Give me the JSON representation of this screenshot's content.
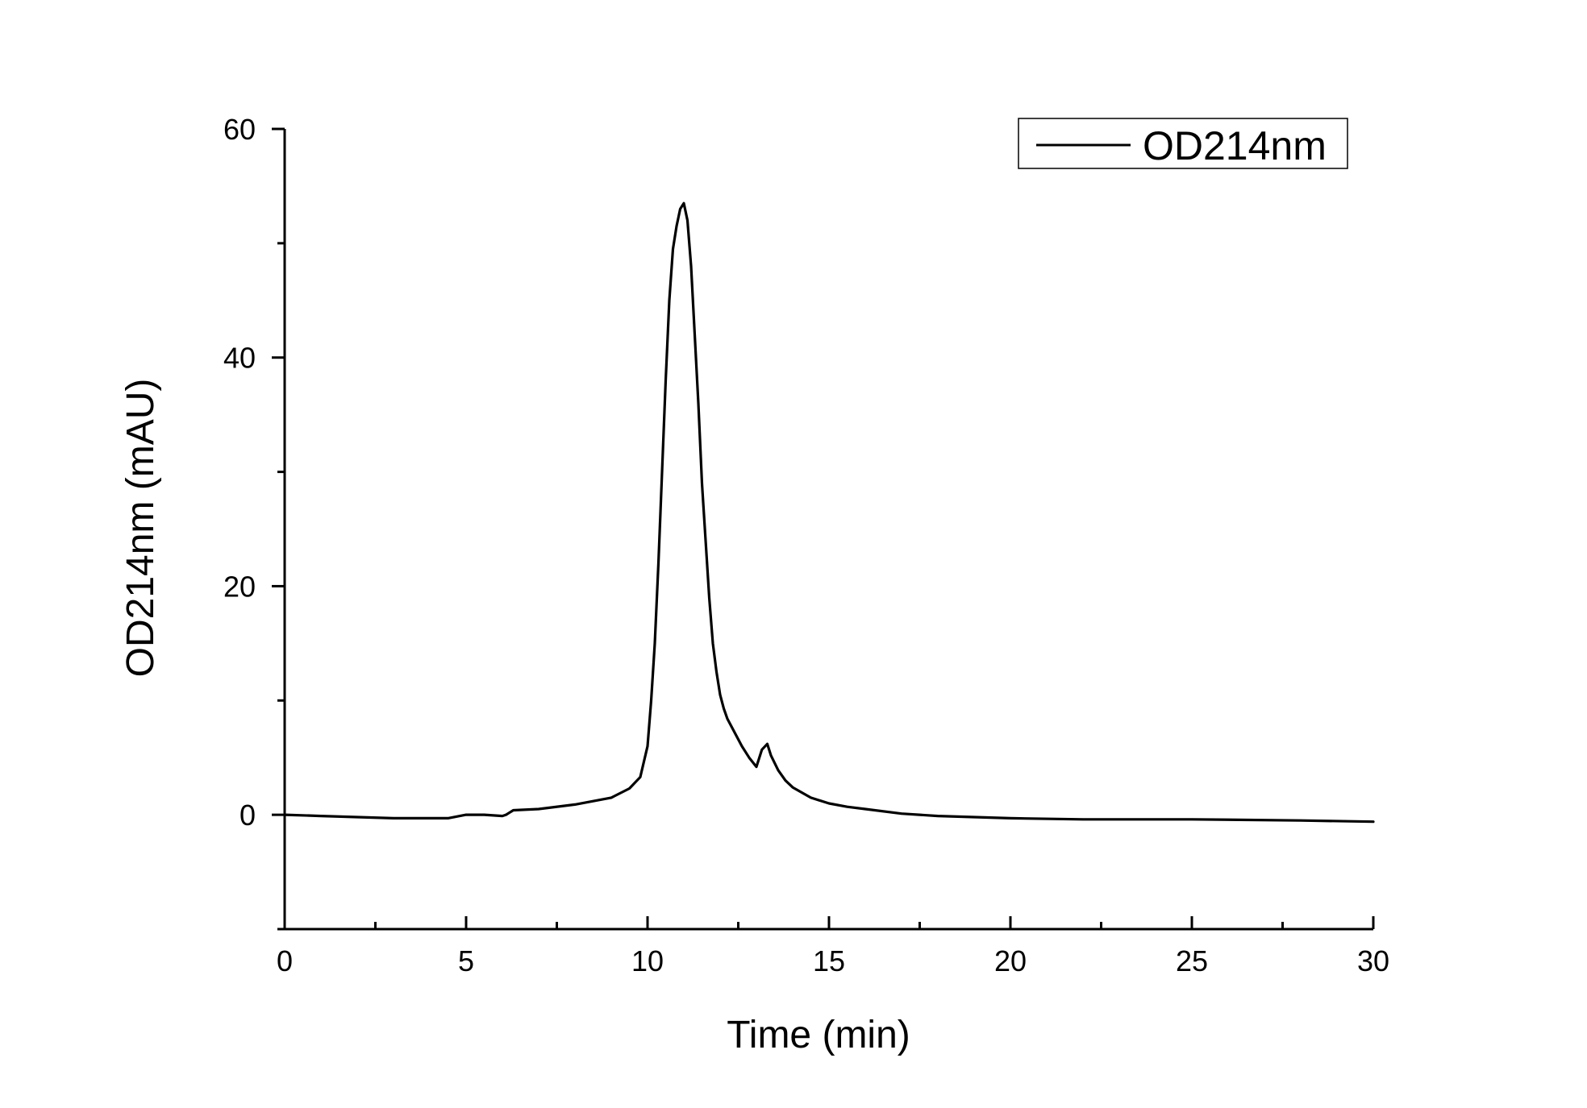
{
  "chart_data": {
    "type": "line",
    "title": "",
    "xlabel": "Time (min)",
    "ylabel": "OD214nm (mAU)",
    "xlim": [
      0,
      30
    ],
    "ylim": [
      -10,
      60
    ],
    "x_ticks": [
      0,
      5,
      10,
      15,
      20,
      25,
      30
    ],
    "x_tick_labels": [
      "0",
      "5",
      "10",
      "15",
      "20",
      "25",
      "30"
    ],
    "y_ticks": [
      0,
      20,
      40,
      60
    ],
    "y_tick_labels": [
      "0",
      "20",
      "40",
      "60"
    ],
    "x_minor_step": 2.5,
    "y_minor_step": 10,
    "grid": false,
    "legend": {
      "position": "top-right",
      "entries": [
        "OD214nm"
      ]
    },
    "line_color": "#000000",
    "series": [
      {
        "name": "OD214nm",
        "x": [
          0,
          1,
          2,
          3,
          4,
          4.5,
          5,
          5.5,
          6,
          6.1,
          6.2,
          6.3,
          7,
          8,
          9,
          9.5,
          9.8,
          10.0,
          10.1,
          10.2,
          10.3,
          10.4,
          10.5,
          10.6,
          10.7,
          10.8,
          10.9,
          11.0,
          11.1,
          11.2,
          11.3,
          11.4,
          11.5,
          11.6,
          11.7,
          11.8,
          11.9,
          12.0,
          12.1,
          12.2,
          12.4,
          12.6,
          12.8,
          13.0,
          13.15,
          13.3,
          13.4,
          13.6,
          13.8,
          14.0,
          14.5,
          15.0,
          15.5,
          16,
          17,
          18,
          19,
          20,
          22,
          25,
          28,
          30
        ],
        "y": [
          0,
          -0.1,
          -0.2,
          -0.3,
          -0.3,
          -0.3,
          0.0,
          0.0,
          -0.1,
          0.0,
          0.2,
          0.4,
          0.5,
          0.9,
          1.5,
          2.3,
          3.3,
          6.0,
          10.0,
          15.0,
          22.0,
          30.0,
          38.0,
          45.0,
          49.5,
          51.5,
          53.0,
          53.5,
          52.0,
          48.0,
          42.0,
          36.0,
          29.0,
          24.0,
          19.0,
          15.0,
          12.5,
          10.5,
          9.3,
          8.4,
          7.2,
          6.0,
          5.0,
          4.2,
          5.7,
          6.2,
          5.2,
          3.9,
          3.0,
          2.4,
          1.5,
          1.0,
          0.7,
          0.5,
          0.1,
          -0.1,
          -0.2,
          -0.3,
          -0.4,
          -0.4,
          -0.5,
          -0.6
        ]
      }
    ]
  }
}
